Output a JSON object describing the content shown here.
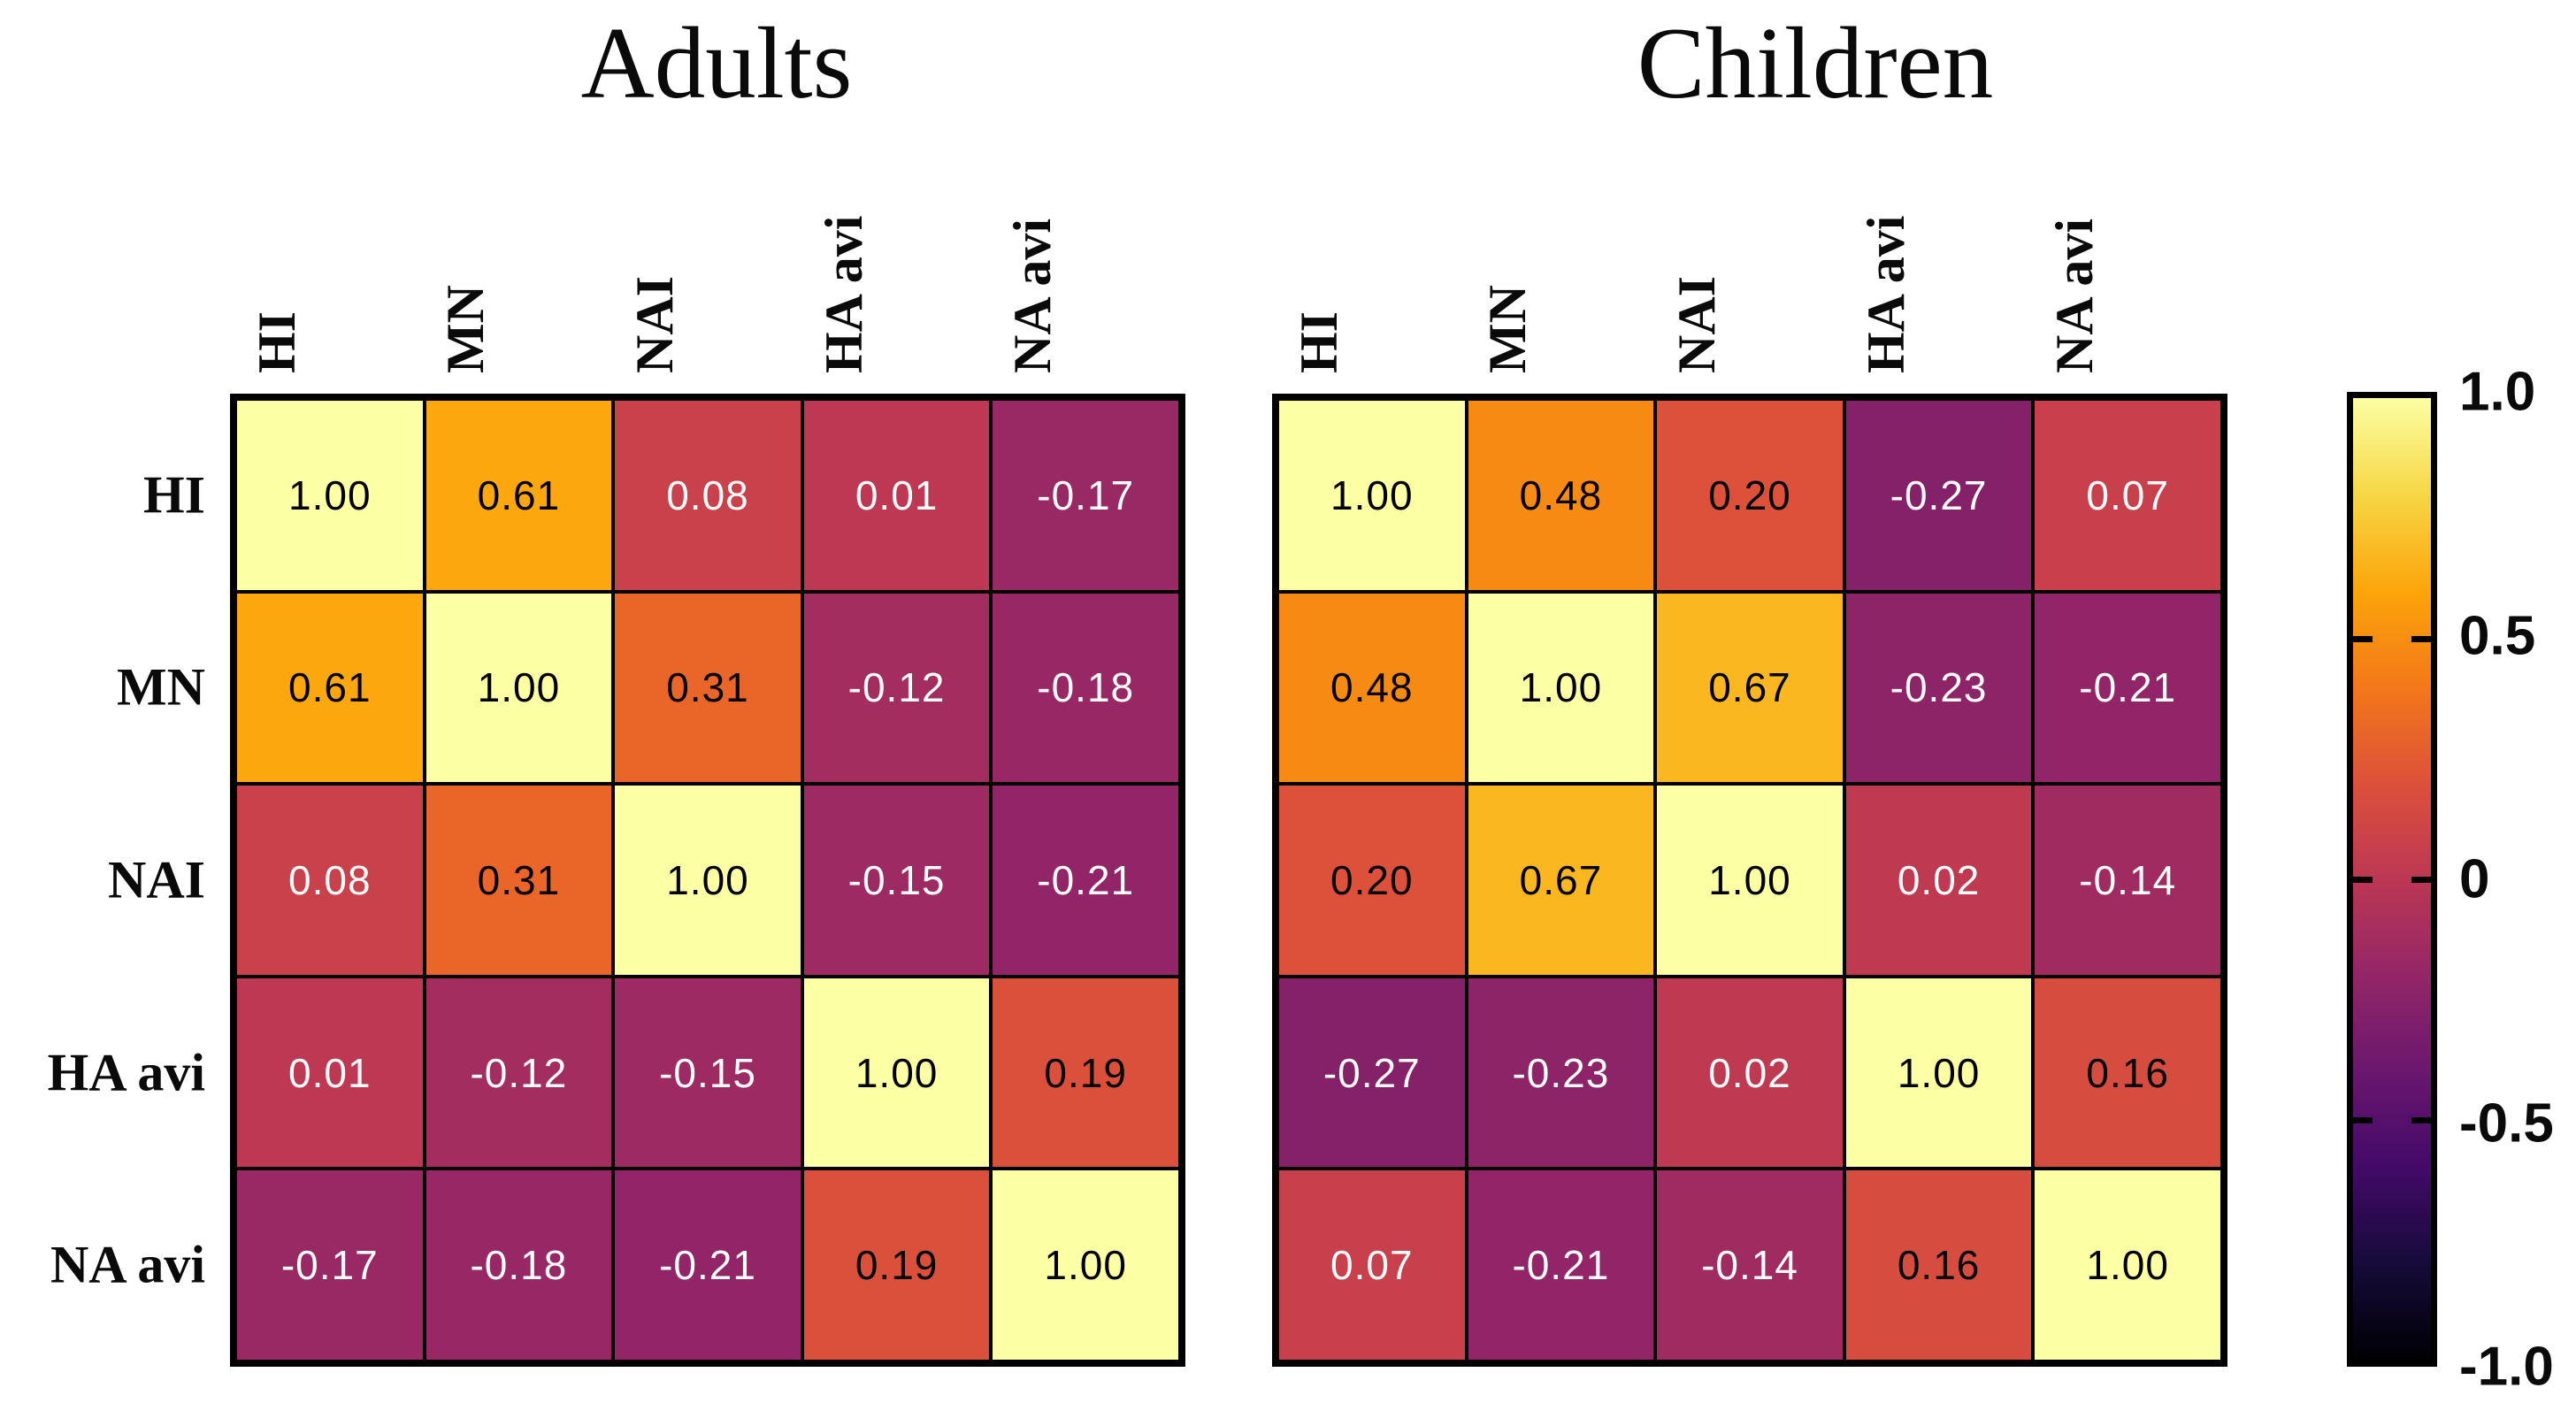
{
  "figure": {
    "background": "#ffffff",
    "grid_line_color": "#000000",
    "cell_text_dark": "#000000",
    "cell_text_light": "#ffffff"
  },
  "chart_data": {
    "type": "heatmap",
    "subtype": "correlation-matrix-pair",
    "variables": [
      "HI",
      "MN",
      "NAI",
      "HA avi",
      "NA avi"
    ],
    "value_format": "2 decimal places",
    "panels": [
      {
        "title": "Adults",
        "matrix": [
          [
            1.0,
            0.61,
            0.08,
            0.01,
            -0.17
          ],
          [
            0.61,
            1.0,
            0.31,
            -0.12,
            -0.18
          ],
          [
            0.08,
            0.31,
            1.0,
            -0.15,
            -0.21
          ],
          [
            0.01,
            -0.12,
            -0.15,
            1.0,
            0.19
          ],
          [
            -0.17,
            -0.18,
            -0.21,
            0.19,
            1.0
          ]
        ]
      },
      {
        "title": "Children",
        "matrix": [
          [
            1.0,
            0.48,
            0.2,
            -0.27,
            0.07
          ],
          [
            0.48,
            1.0,
            0.67,
            -0.23,
            -0.21
          ],
          [
            0.2,
            0.67,
            1.0,
            0.02,
            -0.14
          ],
          [
            -0.27,
            -0.23,
            0.02,
            1.0,
            0.16
          ],
          [
            0.07,
            -0.21,
            -0.14,
            0.16,
            1.0
          ]
        ]
      }
    ],
    "colorbar": {
      "range": [
        -1.0,
        1.0
      ],
      "tick_labels": [
        "1.0",
        "0.5",
        "0",
        "-0.5",
        "-1.0"
      ],
      "tick_values": [
        1.0,
        0.5,
        0.0,
        -0.5,
        -1.0
      ],
      "colormap": "inferno",
      "gradient_stops_top_to_bottom": [
        "#fcffa4",
        "#f6d746",
        "#fca50a",
        "#f37819",
        "#dd513a",
        "#bc3754",
        "#932667",
        "#6a176e",
        "#420a68",
        "#160b39",
        "#000004"
      ]
    },
    "legend_position": "right",
    "grid": "black cell borders",
    "dark_text_threshold_value": 0.14
  }
}
